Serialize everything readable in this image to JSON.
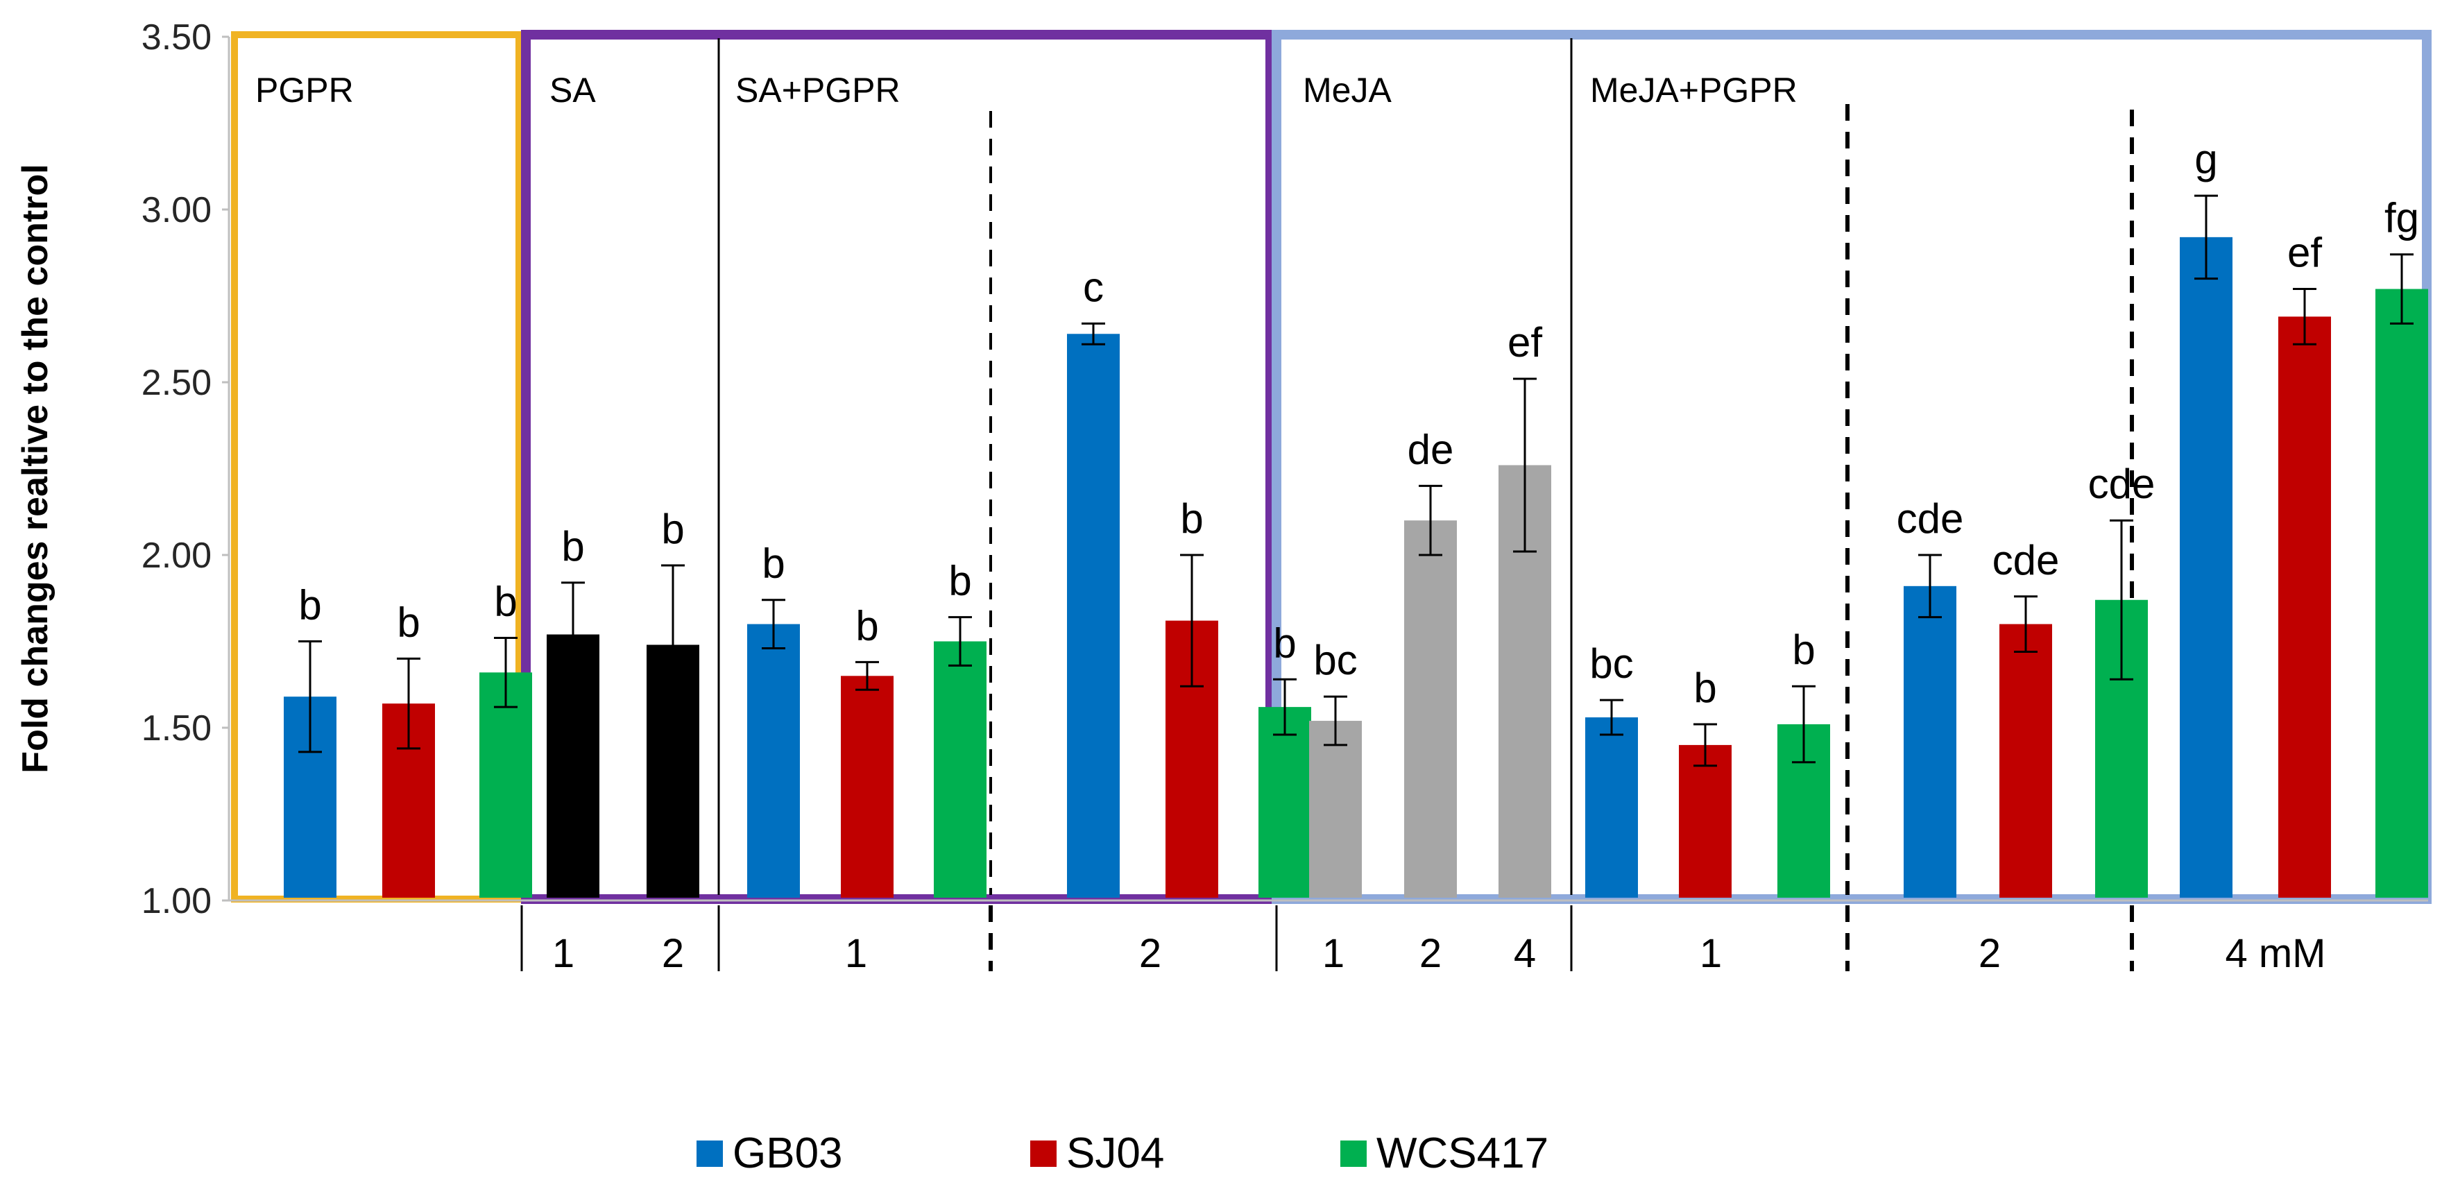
{
  "chart_data": {
    "type": "bar",
    "title": "",
    "xlabel": "",
    "ylabel": "Fold changes realtive to the control",
    "ylim": [
      1.0,
      3.5
    ],
    "yticks": [
      "1.00",
      "1.50",
      "2.00",
      "2.50",
      "3.00",
      "3.50"
    ],
    "yticks_values": [
      1.0,
      1.5,
      2.0,
      2.5,
      3.0,
      3.5
    ],
    "legend_position": "bottom",
    "legend": [
      {
        "name": "GB03",
        "color": "#0070C0"
      },
      {
        "name": "SJ04",
        "color": "#C00000"
      },
      {
        "name": "WCS417",
        "color": "#00B050"
      }
    ],
    "group_labels": [
      "PGPR",
      "SA",
      "SA+PGPR",
      "MeJA",
      "MeJA+PGPR"
    ],
    "category_labels": [
      "1",
      "2",
      "1",
      "2",
      "1",
      "2",
      "4",
      "1",
      "2",
      "4 mM"
    ],
    "bars": [
      {
        "group": "PGPR",
        "series": "GB03",
        "value": 1.59,
        "error": 0.16,
        "letter": "b",
        "color": "#0070C0"
      },
      {
        "group": "PGPR",
        "series": "SJ04",
        "value": 1.57,
        "error": 0.13,
        "letter": "b",
        "color": "#C00000"
      },
      {
        "group": "PGPR",
        "series": "WCS417",
        "value": 1.66,
        "error": 0.1,
        "letter": "b",
        "color": "#00B050"
      },
      {
        "group": "SA 1",
        "series": "SA",
        "value": 1.77,
        "error": 0.15,
        "letter": "b",
        "color": "#000000"
      },
      {
        "group": "SA 2",
        "series": "SA",
        "value": 1.74,
        "error": 0.23,
        "letter": "b",
        "color": "#000000"
      },
      {
        "group": "SA+PGPR 1",
        "series": "GB03",
        "value": 1.8,
        "error": 0.07,
        "letter": "b",
        "color": "#0070C0"
      },
      {
        "group": "SA+PGPR 1",
        "series": "SJ04",
        "value": 1.65,
        "error": 0.04,
        "letter": "b",
        "color": "#C00000"
      },
      {
        "group": "SA+PGPR 1",
        "series": "WCS417",
        "value": 1.75,
        "error": 0.07,
        "letter": "b",
        "color": "#00B050"
      },
      {
        "group": "SA+PGPR 2",
        "series": "GB03",
        "value": 2.64,
        "error": 0.03,
        "letter": "c",
        "color": "#0070C0"
      },
      {
        "group": "SA+PGPR 2",
        "series": "SJ04",
        "value": 1.81,
        "error": 0.19,
        "letter": "b",
        "color": "#C00000"
      },
      {
        "group": "SA+PGPR 2",
        "series": "WCS417",
        "value": 1.56,
        "error": 0.08,
        "letter": "b",
        "color": "#00B050"
      },
      {
        "group": "MeJA 1",
        "series": "MeJA",
        "value": 1.52,
        "error": 0.07,
        "letter": "bc",
        "color": "#A6A6A6"
      },
      {
        "group": "MeJA 2",
        "series": "MeJA",
        "value": 2.1,
        "error": 0.1,
        "letter": "de",
        "color": "#A6A6A6"
      },
      {
        "group": "MeJA 4",
        "series": "MeJA",
        "value": 2.26,
        "error": 0.25,
        "letter": "ef",
        "color": "#A6A6A6"
      },
      {
        "group": "MeJA+PGPR 1",
        "series": "GB03",
        "value": 1.53,
        "error": 0.05,
        "letter": "bc",
        "color": "#0070C0"
      },
      {
        "group": "MeJA+PGPR 1",
        "series": "SJ04",
        "value": 1.45,
        "error": 0.06,
        "letter": "b",
        "color": "#C00000"
      },
      {
        "group": "MeJA+PGPR 1",
        "series": "WCS417",
        "value": 1.51,
        "error": 0.11,
        "letter": "b",
        "color": "#00B050"
      },
      {
        "group": "MeJA+PGPR 2",
        "series": "GB03",
        "value": 1.91,
        "error": 0.09,
        "letter": "cde",
        "color": "#0070C0"
      },
      {
        "group": "MeJA+PGPR 2",
        "series": "SJ04",
        "value": 1.8,
        "error": 0.08,
        "letter": "cde",
        "color": "#C00000"
      },
      {
        "group": "MeJA+PGPR 2",
        "series": "WCS417",
        "value": 1.87,
        "error": 0.23,
        "letter": "cde",
        "color": "#00B050"
      },
      {
        "group": "MeJA+PGPR 4 mM",
        "series": "GB03",
        "value": 2.92,
        "error": 0.12,
        "letter": "g",
        "color": "#0070C0"
      },
      {
        "group": "MeJA+PGPR 4 mM",
        "series": "SJ04",
        "value": 2.69,
        "error": 0.08,
        "letter": "ef",
        "color": "#C00000"
      },
      {
        "group": "MeJA+PGPR 4 mM",
        "series": "WCS417",
        "value": 2.77,
        "error": 0.1,
        "letter": "fg",
        "color": "#00B050"
      }
    ],
    "box_colors": {
      "pgpr": "#F0B323",
      "sa": "#7030A0",
      "meja": "#8EA9DB"
    }
  }
}
